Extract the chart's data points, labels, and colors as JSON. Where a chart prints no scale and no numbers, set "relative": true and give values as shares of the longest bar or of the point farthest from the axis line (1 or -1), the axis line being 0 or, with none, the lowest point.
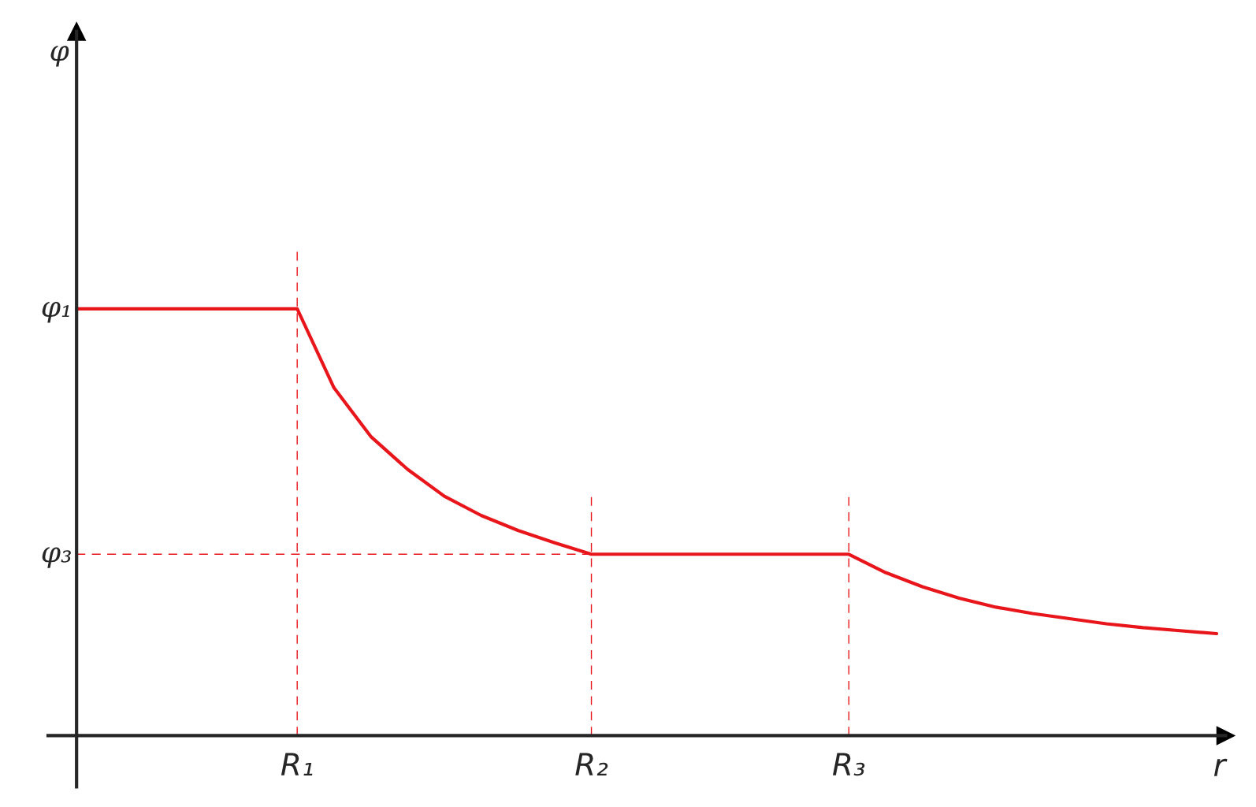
{
  "chart_data": {
    "type": "line",
    "relative": true,
    "xlabel": "r",
    "categories": [
      null,
      null,
      null,
      null,
      null,
      null,
      "R₁",
      null,
      null,
      null,
      null,
      null,
      null,
      null,
      "R₂",
      null,
      null,
      null,
      null,
      null,
      null,
      "R₃",
      null,
      null,
      null,
      null,
      null,
      null,
      null,
      null,
      null,
      null
    ],
    "series": [
      {
        "color": "#e8151b",
        "values": [
          1,
          1,
          1,
          1,
          1,
          1,
          1,
          0.815,
          0.701,
          0.624,
          0.561,
          0.516,
          0.481,
          0.452,
          0.425,
          0.425,
          0.425,
          0.425,
          0.425,
          0.425,
          0.425,
          0.425,
          0.382,
          0.349,
          0.322,
          0.301,
          0.286,
          0.274,
          0.262,
          0.253,
          0.246,
          0.239
        ]
      }
    ],
    "ref_lines": [
      {
        "axis": "x",
        "value": "R₁",
        "color": "#e8151b",
        "line_style": "dashed"
      },
      {
        "axis": "x",
        "value": "R₂",
        "color": "#e8151b",
        "line_style": "dashed"
      },
      {
        "axis": "x",
        "value": "R₃",
        "color": "#e8151b",
        "line_style": "dashed"
      },
      {
        "axis": "y",
        "value": 0.425,
        "label": "φ₃",
        "color": "#e8151b",
        "line_style": "dashed"
      }
    ],
    "annotations": [
      "φ",
      "φ₁"
    ],
    "legend": false,
    "marker": "none",
    "line_style": "solid"
  }
}
